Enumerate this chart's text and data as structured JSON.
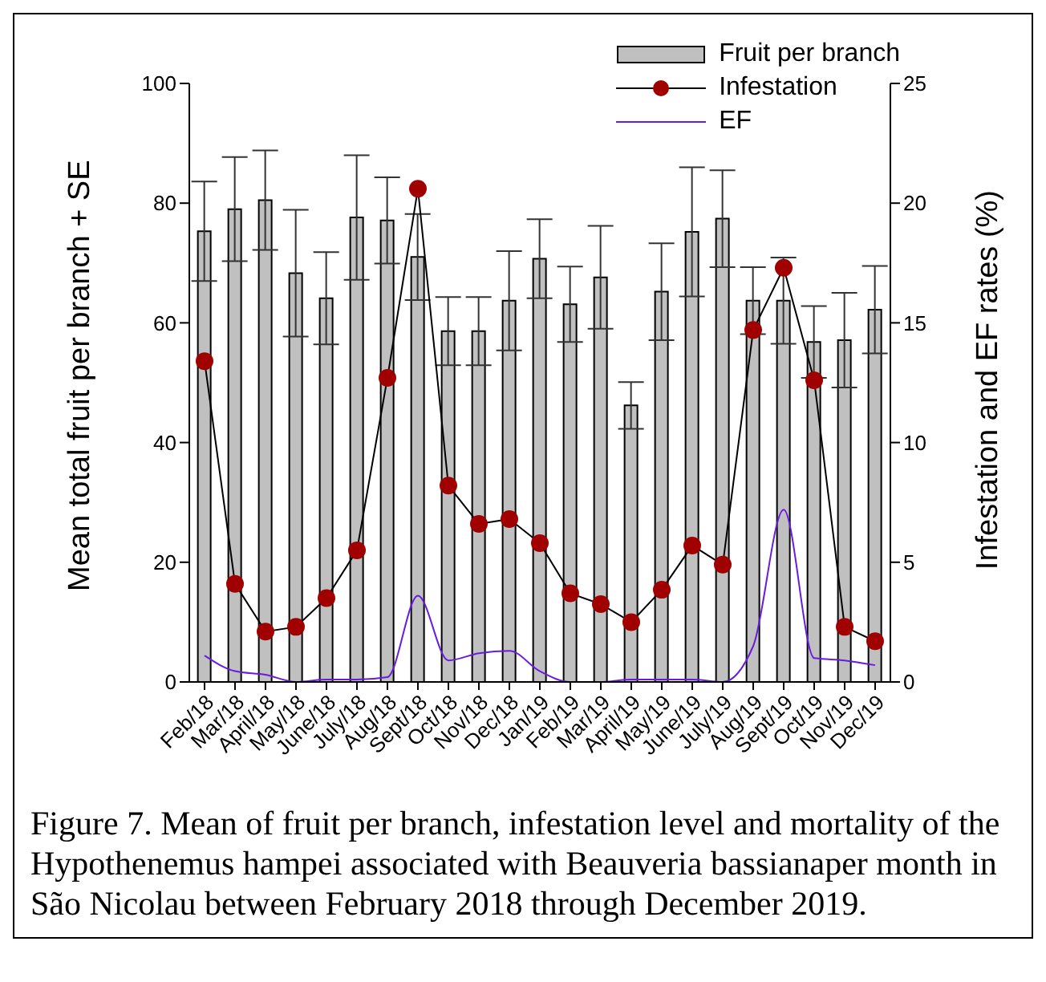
{
  "chart_data": {
    "type": "bar",
    "ylabel": "Mean total fruit per branch + SE",
    "y2label": "Infestation and EF rates (%)",
    "categories": [
      "Feb/18",
      "Mar/18",
      "April/18",
      "May/18",
      "June/18",
      "July/18",
      "Aug/18",
      "Sept/18",
      "Oct/18",
      "Nov/18",
      "Dec/18",
      "Jan/19",
      "Feb/19",
      "Mar/19",
      "April/19",
      "May/19",
      "June/19",
      "July/19",
      "Aug/19",
      "Sept/19",
      "Oct/19",
      "Nov/19",
      "Dec/19"
    ],
    "series": [
      {
        "name": "Fruit per branch",
        "color": "#c0c0c0",
        "values": [
          75.3,
          79,
          80.5,
          68.3,
          64.1,
          77.6,
          77.1,
          71,
          58.6,
          58.6,
          63.7,
          70.7,
          63.1,
          67.6,
          46.2,
          65.2,
          75.2,
          77.4,
          63.7,
          63.7,
          56.8,
          57.1,
          62.2
        ],
        "errors": [
          8.3,
          8.7,
          8.3,
          10.6,
          7.7,
          10.4,
          7.2,
          7.2,
          5.7,
          5.7,
          8.3,
          6.6,
          6.3,
          8.6,
          3.9,
          8.1,
          10.8,
          8.1,
          5.6,
          7.2,
          6,
          7.9,
          7.3
        ]
      },
      {
        "name": "Infestation",
        "type": "line",
        "axis": "y2",
        "color": "#a00000",
        "marker": "circle",
        "values": [
          13.4,
          4.1,
          2.1,
          2.3,
          3.5,
          5.5,
          12.7,
          20.6,
          8.2,
          6.6,
          6.8,
          5.8,
          3.7,
          3.25,
          2.5,
          3.85,
          5.7,
          4.9,
          14.7,
          17.3,
          12.6,
          2.3,
          1.7
        ]
      },
      {
        "name": "EF",
        "type": "line",
        "axis": "y2",
        "color": "#6a1be0",
        "marker": "none",
        "values": [
          1.1,
          0.45,
          0.3,
          0,
          0.1,
          0.1,
          0.2,
          3.6,
          0.9,
          1.2,
          1.3,
          0.45,
          0,
          0,
          0.1,
          0.1,
          0.1,
          0,
          1.5,
          7.2,
          1,
          0.9,
          0.7
        ]
      }
    ],
    "ylim": [
      0,
      100
    ],
    "yticks": [
      0,
      20,
      40,
      60,
      80,
      100
    ],
    "y2lim": [
      0,
      25
    ],
    "y2ticks": [
      0,
      5,
      10,
      15,
      20,
      25
    ],
    "legend": "top right",
    "grid": false,
    "annotations": [
      "Figure 7. Mean of fruit per branch, infestation level and mortality of the Hypothenemus hampei associated with Beauveria bassianaper month in São Nicolau between February 2018 through December 2019."
    ]
  }
}
